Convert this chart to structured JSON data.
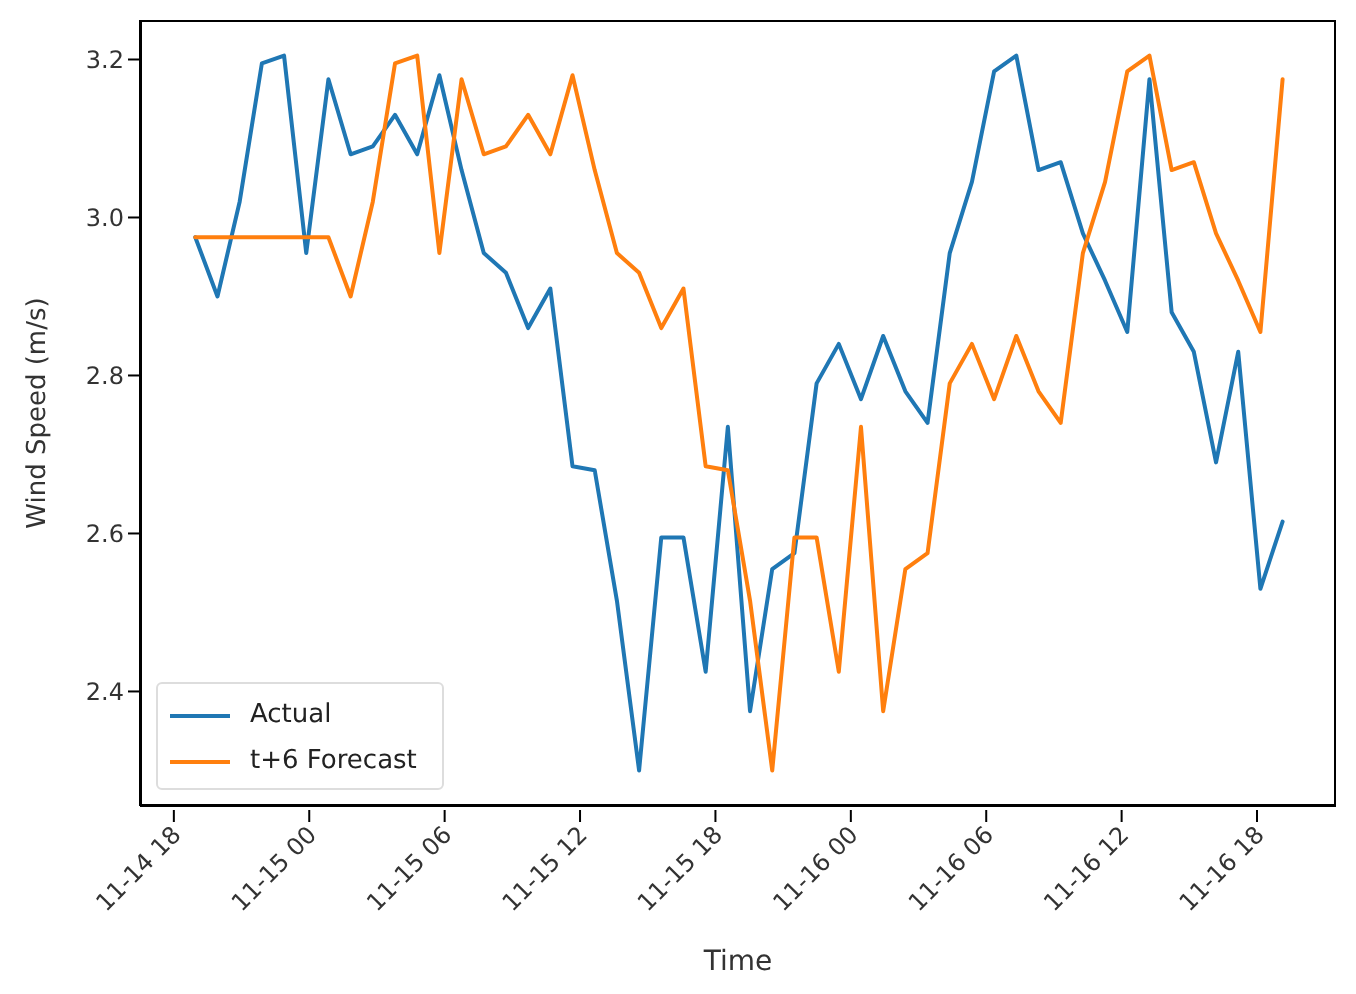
{
  "chart_data": {
    "type": "line",
    "xlabel": "Time",
    "ylabel": "Wind Speed (m/s)",
    "x": [
      "--11-14T18:57",
      "--11-14T19:56",
      "--11-14T20:55",
      "--11-14T21:54",
      "--11-14T22:53",
      "--11-14T23:52",
      "--11-15T00:51",
      "--11-15T01:50",
      "--11-15T02:49",
      "--11-15T03:48",
      "--11-15T04:47",
      "--11-15T05:46",
      "--11-15T06:45",
      "--11-15T07:44",
      "--11-15T08:43",
      "--11-15T09:42",
      "--11-15T10:41",
      "--11-15T11:40",
      "--11-15T12:39",
      "--11-15T13:38",
      "--11-15T14:37",
      "--11-15T15:36",
      "--11-15T16:35",
      "--11-15T17:34",
      "--11-15T18:33",
      "--11-15T19:32",
      "--11-15T20:31",
      "--11-15T21:30",
      "--11-15T22:29",
      "--11-15T23:28",
      "--11-16T00:27",
      "--11-16T01:26",
      "--11-16T02:25",
      "--11-16T03:24",
      "--11-16T04:23",
      "--11-16T05:22",
      "--11-16T06:21",
      "--11-16T07:20",
      "--11-16T08:19",
      "--11-16T09:18",
      "--11-16T10:17",
      "--11-16T11:16",
      "--11-16T12:15",
      "--11-16T13:14",
      "--11-16T14:13",
      "--11-16T15:12",
      "--11-16T16:11",
      "--11-16T17:10",
      "--11-16T18:09",
      "--11-16T19:08"
    ],
    "series": [
      {
        "name": "Actual",
        "color": "#1f77b4",
        "values": [
          2.975,
          2.9,
          3.02,
          3.195,
          3.205,
          2.955,
          3.175,
          3.08,
          3.09,
          3.13,
          3.08,
          3.18,
          3.06,
          2.955,
          2.93,
          2.86,
          2.91,
          2.685,
          2.68,
          2.515,
          2.3,
          2.595,
          2.595,
          2.425,
          2.735,
          2.375,
          2.555,
          2.575,
          2.79,
          2.84,
          2.77,
          2.85,
          2.78,
          2.74,
          2.955,
          3.045,
          3.185,
          3.205,
          3.06,
          3.07,
          2.98,
          2.92,
          2.855,
          3.175,
          2.88,
          2.83,
          2.69,
          2.83,
          2.53,
          2.615
        ]
      },
      {
        "name": "t+6 Forecast",
        "color": "#ff7f0e",
        "values": [
          2.975,
          2.975,
          2.975,
          2.975,
          2.975,
          2.975,
          2.975,
          2.9,
          3.02,
          3.195,
          3.205,
          2.955,
          3.175,
          3.08,
          3.09,
          3.13,
          3.08,
          3.18,
          3.06,
          2.955,
          2.93,
          2.86,
          2.91,
          2.685,
          2.68,
          2.515,
          2.3,
          2.595,
          2.595,
          2.425,
          2.735,
          2.375,
          2.555,
          2.575,
          2.79,
          2.84,
          2.77,
          2.85,
          2.78,
          2.74,
          2.955,
          3.045,
          3.185,
          3.205,
          3.06,
          3.07,
          2.98,
          2.92,
          2.855,
          3.175
        ]
      }
    ],
    "xlim": [
      "--11-14T16:30",
      "--11-16T21:30"
    ],
    "xticks": [
      {
        "value": "--11-14T18:00",
        "label": "11-14 18"
      },
      {
        "value": "--11-15T00:00",
        "label": "11-15 00"
      },
      {
        "value": "--11-15T06:00",
        "label": "11-15 06"
      },
      {
        "value": "--11-15T12:00",
        "label": "11-15 12"
      },
      {
        "value": "--11-15T18:00",
        "label": "11-15 18"
      },
      {
        "value": "--11-16T00:00",
        "label": "11-16 00"
      },
      {
        "value": "--11-16T06:00",
        "label": "11-16 06"
      },
      {
        "value": "--11-16T12:00",
        "label": "11-16 12"
      },
      {
        "value": "--11-16T18:00",
        "label": "11-16 18"
      }
    ],
    "ylim": [
      2.255,
      3.25
    ],
    "yticks": [
      2.4,
      2.6,
      2.8,
      {
        "value": 3,
        "label": "3.0"
      },
      3.2
    ],
    "legend": "bottom left",
    "grid": false,
    "line_style": "solid",
    "marker": "none"
  }
}
